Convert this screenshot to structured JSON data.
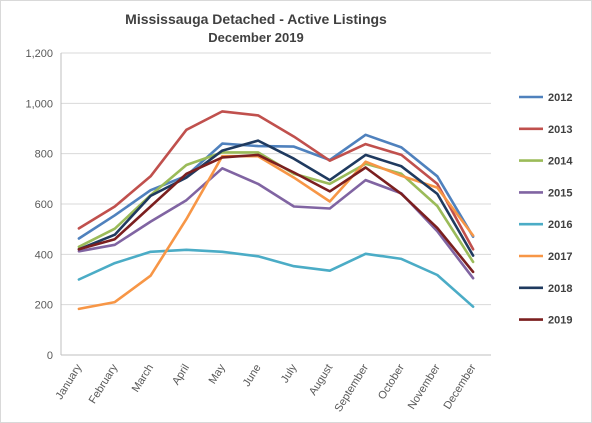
{
  "chart_data": {
    "type": "line",
    "title": "Mississauga Detached - Active Listings",
    "subtitle": "December 2019",
    "xlabel": "",
    "ylabel": "",
    "categories": [
      "January",
      "February",
      "March",
      "April",
      "May",
      "June",
      "July",
      "August",
      "September",
      "October",
      "November",
      "December"
    ],
    "ylim": [
      0,
      1200
    ],
    "yticks": [
      0,
      200,
      400,
      600,
      800,
      1000,
      1200
    ],
    "ytick_labels": [
      "0",
      "200",
      "400",
      "600",
      "800",
      "1,000",
      "1,200"
    ],
    "grid": true,
    "legend_position": "right",
    "series": [
      {
        "name": "2012",
        "color": "#4f81bd",
        "values": [
          463,
          555,
          655,
          712,
          840,
          830,
          828,
          775,
          875,
          825,
          710,
          470
        ]
      },
      {
        "name": "2013",
        "color": "#c0504d",
        "values": [
          503,
          590,
          710,
          895,
          968,
          952,
          868,
          772,
          838,
          795,
          680,
          420
        ]
      },
      {
        "name": "2014",
        "color": "#9bbb59",
        "values": [
          430,
          502,
          635,
          755,
          805,
          805,
          720,
          680,
          760,
          720,
          592,
          370
        ]
      },
      {
        "name": "2015",
        "color": "#8064a2",
        "values": [
          412,
          438,
          530,
          615,
          742,
          680,
          590,
          582,
          695,
          642,
          492,
          305
        ]
      },
      {
        "name": "2016",
        "color": "#4bacc6",
        "values": [
          300,
          365,
          410,
          418,
          410,
          392,
          353,
          335,
          402,
          382,
          318,
          192
        ]
      },
      {
        "name": "2017",
        "color": "#f79646",
        "values": [
          183,
          210,
          315,
          540,
          790,
          790,
          705,
          610,
          768,
          712,
          665,
          475
        ]
      },
      {
        "name": "2018",
        "color": "#1f3a5f",
        "values": [
          420,
          478,
          632,
          705,
          812,
          852,
          780,
          695,
          795,
          750,
          640,
          395
        ]
      },
      {
        "name": "2019",
        "color": "#7b1f1f",
        "values": [
          420,
          460,
          590,
          720,
          785,
          795,
          725,
          650,
          745,
          640,
          505,
          330
        ]
      }
    ]
  }
}
